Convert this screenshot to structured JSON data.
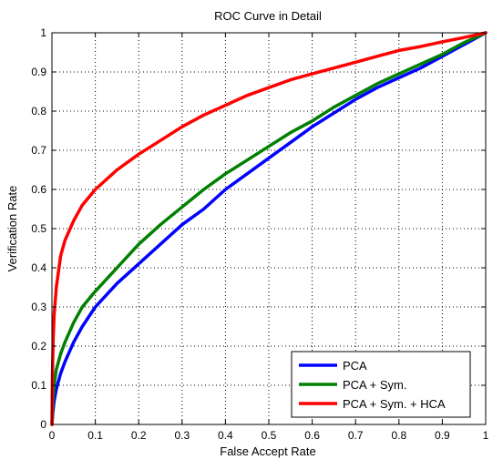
{
  "chart_data": {
    "type": "line",
    "title": "ROC Curve in Detail",
    "xlabel": "False Accept Rate",
    "ylabel": "Verification Rate",
    "xlim": [
      0,
      1
    ],
    "ylim": [
      0,
      1
    ],
    "grid": true,
    "legend_position": "bottom-right",
    "x_ticks": [
      "0",
      "0.1",
      "0.2",
      "0.3",
      "0.4",
      "0.5",
      "0.6",
      "0.7",
      "0.8",
      "0.9",
      "1"
    ],
    "y_ticks": [
      "0",
      "0.1",
      "0.2",
      "0.3",
      "0.4",
      "0.5",
      "0.6",
      "0.7",
      "0.8",
      "0.9",
      "1"
    ],
    "series": [
      {
        "name": "PCA",
        "color": "#0000ff",
        "x": [
          0,
          0.002,
          0.005,
          0.01,
          0.02,
          0.03,
          0.05,
          0.07,
          0.1,
          0.15,
          0.2,
          0.25,
          0.3,
          0.35,
          0.4,
          0.45,
          0.5,
          0.55,
          0.6,
          0.65,
          0.7,
          0.75,
          0.8,
          0.85,
          0.9,
          0.95,
          1.0
        ],
        "y": [
          0,
          0.03,
          0.06,
          0.09,
          0.13,
          0.16,
          0.21,
          0.25,
          0.3,
          0.36,
          0.41,
          0.46,
          0.51,
          0.55,
          0.6,
          0.64,
          0.68,
          0.72,
          0.76,
          0.795,
          0.83,
          0.86,
          0.885,
          0.91,
          0.94,
          0.97,
          1.0
        ]
      },
      {
        "name": "PCA + Sym.",
        "color": "#008000",
        "x": [
          0,
          0.002,
          0.005,
          0.01,
          0.02,
          0.03,
          0.05,
          0.07,
          0.1,
          0.15,
          0.2,
          0.25,
          0.3,
          0.35,
          0.4,
          0.45,
          0.5,
          0.55,
          0.6,
          0.65,
          0.7,
          0.75,
          0.8,
          0.85,
          0.9,
          0.95,
          1.0
        ],
        "y": [
          0,
          0.06,
          0.1,
          0.14,
          0.18,
          0.21,
          0.26,
          0.3,
          0.34,
          0.4,
          0.46,
          0.51,
          0.555,
          0.6,
          0.64,
          0.675,
          0.71,
          0.745,
          0.775,
          0.81,
          0.84,
          0.87,
          0.895,
          0.92,
          0.945,
          0.975,
          1.0
        ]
      },
      {
        "name": "PCA + Sym. + HCA",
        "color": "#ff0000",
        "x": [
          0,
          0.001,
          0.003,
          0.005,
          0.01,
          0.02,
          0.03,
          0.05,
          0.07,
          0.1,
          0.15,
          0.2,
          0.25,
          0.3,
          0.35,
          0.4,
          0.45,
          0.5,
          0.55,
          0.6,
          0.65,
          0.7,
          0.75,
          0.8,
          0.85,
          0.9,
          0.95,
          1.0
        ],
        "y": [
          0,
          0.12,
          0.22,
          0.28,
          0.35,
          0.43,
          0.47,
          0.52,
          0.56,
          0.6,
          0.65,
          0.69,
          0.725,
          0.76,
          0.79,
          0.815,
          0.84,
          0.86,
          0.88,
          0.895,
          0.91,
          0.925,
          0.94,
          0.955,
          0.965,
          0.977,
          0.988,
          1.0
        ]
      }
    ]
  }
}
